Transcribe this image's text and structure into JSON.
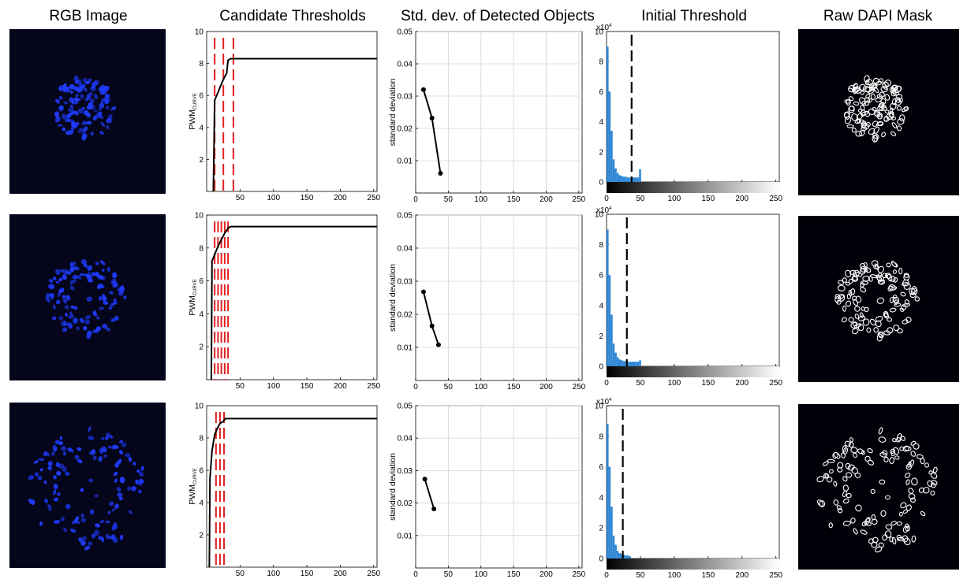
{
  "headers": {
    "rgb": "RGB Image",
    "candidates": "Candidate Thresholds",
    "std": "Std. dev. of Detected Objects",
    "initial": "Initial Threshold",
    "mask": "Raw DAPI Mask"
  },
  "colors": {
    "background": "#ffffff",
    "image_bg": "#05051c",
    "nuclei": "#1f3cff",
    "mask_outline": "#ffffff",
    "threshold_line": "#e02020",
    "curve": "#000000",
    "histogram": "#2f87d4"
  },
  "chart_data": [
    {
      "type": "line",
      "panel": "candidate-thresholds",
      "row": 1,
      "ylabel": "PWM",
      "ylabel_sub": "CURVE",
      "xlim": [
        0,
        255
      ],
      "ylim": [
        0,
        10
      ],
      "xticks": [
        50,
        100,
        150,
        200,
        250
      ],
      "yticks": [
        2,
        4,
        6,
        8,
        10
      ],
      "x": [
        10,
        12,
        15,
        20,
        25,
        30,
        32,
        36,
        40,
        100,
        200,
        255
      ],
      "y": [
        0,
        5.7,
        6.0,
        6.5,
        7.0,
        7.4,
        8.2,
        8.3,
        8.3,
        8.3,
        8.3,
        8.3
      ],
      "threshold_lines": [
        12,
        25,
        40
      ]
    },
    {
      "type": "line",
      "panel": "candidate-thresholds",
      "row": 2,
      "ylabel": "PWM",
      "ylabel_sub": "CURVE",
      "xlim": [
        0,
        255
      ],
      "ylim": [
        0,
        10
      ],
      "xticks": [
        50,
        100,
        150,
        200,
        250
      ],
      "yticks": [
        2,
        4,
        6,
        8,
        10
      ],
      "x": [
        7,
        8,
        12,
        17,
        22,
        27,
        32,
        36,
        40,
        100,
        200,
        255
      ],
      "y": [
        0,
        7.2,
        7.6,
        8.1,
        8.5,
        8.9,
        9.2,
        9.3,
        9.3,
        9.3,
        9.3,
        9.3
      ],
      "threshold_lines": [
        12,
        17,
        22,
        27,
        32
      ]
    },
    {
      "type": "line",
      "panel": "candidate-thresholds",
      "row": 3,
      "ylabel": "PWM",
      "ylabel_sub": "CURVE",
      "xlim": [
        0,
        255
      ],
      "ylim": [
        0,
        10
      ],
      "xticks": [
        50,
        100,
        150,
        200,
        250
      ],
      "yticks": [
        2,
        4,
        6,
        8,
        10
      ],
      "x": [
        4,
        5,
        8,
        12,
        16,
        20,
        24,
        28,
        33,
        100,
        200,
        255
      ],
      "y": [
        0,
        5.5,
        7.2,
        8.2,
        8.6,
        8.9,
        9.0,
        9.2,
        9.2,
        9.2,
        9.2,
        9.2
      ],
      "threshold_lines": [
        14,
        20,
        26
      ]
    },
    {
      "type": "line",
      "panel": "std-dev",
      "row": 1,
      "ylabel": "standard deviation",
      "xlim": [
        0,
        255
      ],
      "ylim": [
        0,
        0.05
      ],
      "xticks": [
        0,
        50,
        100,
        150,
        200,
        250
      ],
      "yticks": [
        0.01,
        0.02,
        0.03,
        0.04,
        0.05
      ],
      "x": [
        12,
        25,
        38
      ],
      "y": [
        0.032,
        0.0232,
        0.0061
      ]
    },
    {
      "type": "line",
      "panel": "std-dev",
      "row": 2,
      "ylabel": "standard deviation",
      "xlim": [
        0,
        255
      ],
      "ylim": [
        0,
        0.05
      ],
      "xticks": [
        0,
        50,
        100,
        150,
        200,
        250
      ],
      "yticks": [
        0.01,
        0.02,
        0.03,
        0.04,
        0.05
      ],
      "x": [
        12,
        25,
        35
      ],
      "y": [
        0.0268,
        0.0165,
        0.0108
      ]
    },
    {
      "type": "line",
      "panel": "std-dev",
      "row": 3,
      "ylabel": "standard deviation",
      "xlim": [
        0,
        255
      ],
      "ylim": [
        0,
        0.05
      ],
      "xticks": [
        0,
        50,
        100,
        150,
        200,
        250
      ],
      "yticks": [
        0.01,
        0.02,
        0.03,
        0.04,
        0.05
      ],
      "x": [
        14,
        28
      ],
      "y": [
        0.0274,
        0.0182
      ]
    },
    {
      "type": "bar",
      "panel": "initial-threshold",
      "row": 1,
      "xlim": [
        0,
        255
      ],
      "ylim": [
        0,
        10
      ],
      "y_multiplier": "x10",
      "y_multiplier_exp": "4",
      "xticks": [
        0,
        50,
        100,
        150,
        200,
        250
      ],
      "yticks": [
        0,
        2,
        4,
        6,
        8,
        10
      ],
      "bins": [
        0,
        3,
        6,
        9,
        12,
        15,
        18,
        21,
        24,
        27,
        30,
        33,
        36,
        39,
        42,
        45,
        48
      ],
      "values": [
        9.0,
        6.0,
        3.4,
        1.5,
        0.9,
        0.6,
        0.45,
        0.4,
        0.35,
        0.35,
        0.3,
        0.3,
        0.3,
        0.3,
        0.3,
        0.3,
        0.85
      ],
      "threshold": 37
    },
    {
      "type": "bar",
      "panel": "initial-threshold",
      "row": 2,
      "xlim": [
        0,
        255
      ],
      "ylim": [
        0,
        10
      ],
      "y_multiplier": "x10",
      "y_multiplier_exp": "4",
      "xticks": [
        0,
        50,
        100,
        150,
        200,
        250
      ],
      "yticks": [
        0,
        2,
        4,
        6,
        8,
        10
      ],
      "bins": [
        0,
        3,
        6,
        9,
        12,
        15,
        18,
        21,
        24,
        27,
        30,
        33,
        36,
        39,
        42,
        45,
        48
      ],
      "values": [
        9.0,
        6.0,
        3.4,
        1.5,
        0.9,
        0.6,
        0.45,
        0.4,
        0.35,
        0.35,
        0.3,
        0.3,
        0.3,
        0.3,
        0.3,
        0.3,
        0.4
      ],
      "threshold": 30
    },
    {
      "type": "bar",
      "panel": "initial-threshold",
      "row": 3,
      "xlim": [
        0,
        255
      ],
      "ylim": [
        0,
        10
      ],
      "y_multiplier": "x10",
      "y_multiplier_exp": "4",
      "xticks": [
        0,
        50,
        100,
        150,
        200,
        250
      ],
      "yticks": [
        0,
        2,
        4,
        6,
        8,
        10
      ],
      "bins": [
        0,
        3,
        6,
        9,
        12,
        15,
        18,
        21,
        24,
        27,
        30,
        33
      ],
      "values": [
        8.8,
        6.0,
        3.4,
        1.5,
        0.9,
        0.5,
        0.35,
        0.3,
        0.25,
        0.2,
        0.2,
        0.15
      ],
      "threshold": 24
    }
  ]
}
